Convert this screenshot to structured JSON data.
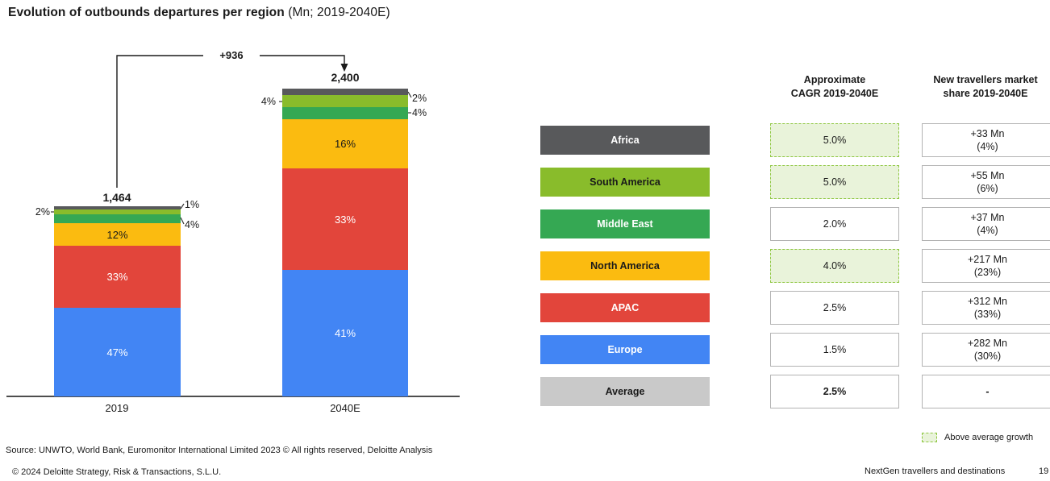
{
  "chart_data": {
    "type": "bar",
    "subtype": "stacked-percent",
    "title_bold": "Evolution of outbounds departures per region",
    "title_rest": " (Mn; 2019-2040E)",
    "unit": "Mn",
    "categories": [
      "2019",
      "2040E"
    ],
    "totals": [
      1464,
      2400
    ],
    "total_labels": [
      "1,464",
      "2,400"
    ],
    "delta_label": "+936",
    "legend_position": "table-chips-right",
    "grid": false,
    "series": [
      {
        "name": "Europe",
        "color": "#4285F4",
        "values_pct": [
          47,
          41
        ]
      },
      {
        "name": "APAC",
        "color": "#E2453B",
        "values_pct": [
          33,
          33
        ]
      },
      {
        "name": "North America",
        "color": "#FBBB10",
        "values_pct": [
          12,
          16
        ]
      },
      {
        "name": "Middle East",
        "color": "#35A853",
        "values_pct": [
          4,
          4
        ]
      },
      {
        "name": "South America",
        "color": "#89BC2B",
        "values_pct": [
          2,
          4
        ]
      },
      {
        "name": "Africa",
        "color": "#58595B",
        "values_pct": [
          1,
          2
        ]
      }
    ],
    "callouts": {
      "y2019": {
        "africa": "1%",
        "south_america": "2%",
        "middle_east": "4%"
      },
      "y2040": {
        "africa": "2%",
        "south_america": "4%",
        "middle_east": "4%"
      }
    }
  },
  "table": {
    "headers": {
      "cagr": {
        "line1": "Approximate",
        "line2": "CAGR 2019-2040E"
      },
      "share": {
        "line1": "New travellers market",
        "line2": "share 2019-2040E"
      }
    },
    "rows": [
      {
        "region": "Africa",
        "color": "#58595B",
        "text_color": "#FFFFFF",
        "cagr": "5.0%",
        "above_average": true,
        "emphasis": false,
        "market_lines": [
          "+33 Mn",
          "(4%)"
        ]
      },
      {
        "region": "South America",
        "color": "#89BC2B",
        "text_color": "#1A1A1A",
        "cagr": "5.0%",
        "above_average": true,
        "emphasis": false,
        "market_lines": [
          "+55 Mn",
          "(6%)"
        ]
      },
      {
        "region": "Middle East",
        "color": "#35A853",
        "text_color": "#FFFFFF",
        "cagr": "2.0%",
        "above_average": false,
        "emphasis": false,
        "market_lines": [
          "+37 Mn",
          "(4%)"
        ]
      },
      {
        "region": "North America",
        "color": "#FBBB10",
        "text_color": "#1A1A1A",
        "cagr": "4.0%",
        "above_average": true,
        "emphasis": false,
        "market_lines": [
          "+217 Mn",
          "(23%)"
        ]
      },
      {
        "region": "APAC",
        "color": "#E2453B",
        "text_color": "#FFFFFF",
        "cagr": "2.5%",
        "above_average": false,
        "emphasis": false,
        "market_lines": [
          "+312 Mn",
          "(33%)"
        ]
      },
      {
        "region": "Europe",
        "color": "#4285F4",
        "text_color": "#FFFFFF",
        "cagr": "1.5%",
        "above_average": false,
        "emphasis": false,
        "market_lines": [
          "+282 Mn",
          "(30%)"
        ]
      },
      {
        "region": "Average",
        "color": "#C9C9C9",
        "text_color": "#1A1A1A",
        "cagr": "2.5%",
        "above_average": false,
        "emphasis": true,
        "market_lines": [
          "-"
        ]
      }
    ]
  },
  "legend": {
    "label": "Above average growth"
  },
  "footer": {
    "source": "Source: UNWTO, World Bank, Euromonitor International Limited 2023 © All rights reserved, Deloitte Analysis",
    "copyright": "© 2024 Deloitte Strategy, Risk & Transactions, S.L.U.",
    "right_text": "NextGen travellers and destinations",
    "page_number": "19"
  }
}
